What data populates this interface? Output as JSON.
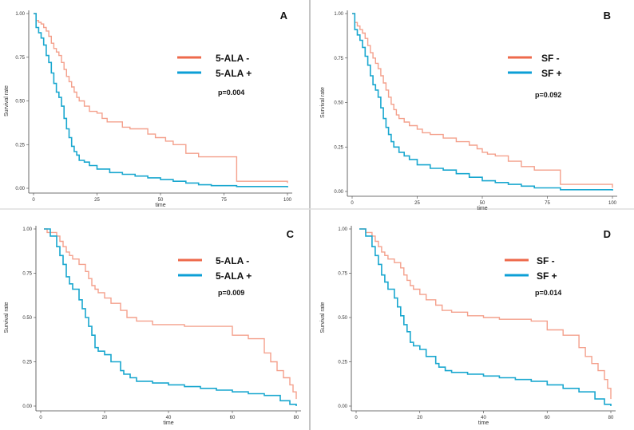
{
  "colors": {
    "negative": "#f4a08c",
    "positive": "#19a7cf",
    "negative_legend": "#ee6a4b",
    "positive_legend": "#0c9fd6",
    "axis": "#444444",
    "divider": "#8a8a8a"
  },
  "chart_data": [
    {
      "type": "line",
      "step": true,
      "panel": "A",
      "title": "",
      "xlabel": "time",
      "ylabel": "Survival rate",
      "xlim": [
        0,
        100
      ],
      "ylim": [
        0,
        1
      ],
      "xticks": [
        "0",
        "25",
        "50",
        "75",
        "100"
      ],
      "yticks": [
        "0.00",
        "0.25",
        "0.50",
        "0.75",
        "1.00"
      ],
      "xtick_values": [
        0,
        25,
        50,
        75,
        100
      ],
      "ytick_values": [
        0,
        0.25,
        0.5,
        0.75,
        1
      ],
      "legend": [
        "5-ALA -",
        "5-ALA +"
      ],
      "annotation": "p=0.004",
      "grid": false,
      "series": [
        {
          "name": "5-ALA -",
          "x": [
            0,
            1,
            2,
            3,
            4,
            5,
            6,
            7,
            8,
            9,
            10,
            11,
            12,
            13,
            14,
            15,
            16,
            17,
            18,
            20,
            22,
            25,
            27,
            29,
            35,
            38,
            45,
            48,
            52,
            55,
            60,
            65,
            80,
            100
          ],
          "values": [
            1.0,
            0.96,
            0.95,
            0.94,
            0.92,
            0.9,
            0.87,
            0.83,
            0.8,
            0.78,
            0.76,
            0.72,
            0.68,
            0.64,
            0.61,
            0.58,
            0.55,
            0.52,
            0.5,
            0.47,
            0.44,
            0.43,
            0.4,
            0.38,
            0.35,
            0.34,
            0.31,
            0.29,
            0.27,
            0.25,
            0.2,
            0.18,
            0.04,
            0.03
          ]
        },
        {
          "name": "5-ALA +",
          "x": [
            0,
            1,
            2,
            3,
            4,
            5,
            6,
            7,
            8,
            9,
            10,
            11,
            12,
            13,
            14,
            15,
            16,
            17,
            18,
            20,
            22,
            25,
            30,
            35,
            40,
            45,
            50,
            55,
            60,
            65,
            70,
            80,
            100
          ],
          "values": [
            1.0,
            0.92,
            0.89,
            0.86,
            0.82,
            0.76,
            0.72,
            0.66,
            0.6,
            0.55,
            0.52,
            0.47,
            0.4,
            0.34,
            0.29,
            0.24,
            0.21,
            0.19,
            0.16,
            0.15,
            0.13,
            0.11,
            0.09,
            0.08,
            0.07,
            0.06,
            0.05,
            0.04,
            0.03,
            0.02,
            0.015,
            0.01,
            0.005
          ]
        }
      ]
    },
    {
      "type": "line",
      "step": true,
      "panel": "B",
      "title": "",
      "xlabel": "time",
      "ylabel": "Survival rate",
      "xlim": [
        0,
        100
      ],
      "ylim": [
        0,
        1
      ],
      "xticks": [
        "0",
        "25",
        "50",
        "75",
        "100"
      ],
      "yticks": [
        "0.00",
        "0.25",
        "0.50",
        "0.75",
        "1.00"
      ],
      "xtick_values": [
        0,
        25,
        50,
        75,
        100
      ],
      "ytick_values": [
        0,
        0.25,
        0.5,
        0.75,
        1
      ],
      "legend": [
        "SF -",
        "SF +"
      ],
      "annotation": "p=0.092",
      "grid": false,
      "series": [
        {
          "name": "SF -",
          "x": [
            0,
            1,
            2,
            3,
            4,
            5,
            6,
            7,
            8,
            9,
            10,
            11,
            12,
            13,
            14,
            15,
            16,
            17,
            18,
            20,
            22,
            25,
            27,
            30,
            35,
            40,
            45,
            48,
            50,
            52,
            55,
            60,
            65,
            70,
            80,
            100
          ],
          "values": [
            1.0,
            0.95,
            0.93,
            0.91,
            0.89,
            0.86,
            0.82,
            0.78,
            0.75,
            0.72,
            0.69,
            0.65,
            0.61,
            0.57,
            0.53,
            0.49,
            0.46,
            0.43,
            0.41,
            0.39,
            0.37,
            0.35,
            0.33,
            0.32,
            0.3,
            0.28,
            0.26,
            0.24,
            0.22,
            0.21,
            0.2,
            0.17,
            0.14,
            0.12,
            0.04,
            0.02
          ]
        },
        {
          "name": "SF +",
          "x": [
            0,
            1,
            2,
            3,
            4,
            5,
            6,
            7,
            8,
            9,
            10,
            11,
            12,
            13,
            14,
            15,
            16,
            18,
            20,
            22,
            25,
            30,
            35,
            40,
            45,
            50,
            55,
            60,
            65,
            70,
            80,
            100
          ],
          "values": [
            1.0,
            0.91,
            0.88,
            0.85,
            0.81,
            0.76,
            0.71,
            0.65,
            0.6,
            0.57,
            0.53,
            0.47,
            0.41,
            0.36,
            0.32,
            0.28,
            0.25,
            0.22,
            0.2,
            0.18,
            0.15,
            0.13,
            0.12,
            0.1,
            0.08,
            0.06,
            0.05,
            0.04,
            0.03,
            0.02,
            0.01,
            0.005
          ]
        }
      ]
    },
    {
      "type": "line",
      "step": true,
      "panel": "C",
      "title": "",
      "xlabel": "time",
      "ylabel": "Survival rate",
      "xlim": [
        0,
        80
      ],
      "ylim": [
        0,
        1
      ],
      "xticks": [
        "0",
        "20",
        "40",
        "60",
        "80"
      ],
      "yticks": [
        "0.00",
        "0.25",
        "0.50",
        "0.75",
        "1.00"
      ],
      "xtick_values": [
        0,
        20,
        40,
        60,
        80
      ],
      "ytick_values": [
        0,
        0.25,
        0.5,
        0.75,
        1
      ],
      "legend": [
        "5-ALA -",
        "5-ALA +"
      ],
      "annotation": "p=0.009",
      "grid": false,
      "series": [
        {
          "name": "5-ALA -",
          "x": [
            1,
            2,
            5,
            6,
            7,
            8,
            9,
            10,
            12,
            14,
            15,
            16,
            17,
            18,
            20,
            22,
            25,
            27,
            30,
            35,
            40,
            45,
            50,
            55,
            60,
            65,
            70,
            72,
            74,
            76,
            78,
            79,
            80
          ],
          "values": [
            1.0,
            0.98,
            0.96,
            0.93,
            0.9,
            0.87,
            0.85,
            0.83,
            0.8,
            0.76,
            0.72,
            0.68,
            0.66,
            0.64,
            0.61,
            0.58,
            0.54,
            0.5,
            0.48,
            0.46,
            0.46,
            0.45,
            0.45,
            0.45,
            0.4,
            0.38,
            0.3,
            0.25,
            0.2,
            0.16,
            0.12,
            0.08,
            0.04
          ]
        },
        {
          "name": "5-ALA +",
          "x": [
            1,
            3,
            5,
            6,
            7,
            8,
            9,
            10,
            12,
            13,
            14,
            15,
            16,
            17,
            18,
            20,
            22,
            25,
            26,
            28,
            30,
            35,
            40,
            45,
            50,
            55,
            60,
            65,
            70,
            75,
            78,
            80
          ],
          "values": [
            1.0,
            0.96,
            0.9,
            0.85,
            0.8,
            0.73,
            0.69,
            0.66,
            0.6,
            0.55,
            0.5,
            0.45,
            0.4,
            0.33,
            0.31,
            0.29,
            0.25,
            0.2,
            0.18,
            0.16,
            0.14,
            0.13,
            0.12,
            0.11,
            0.1,
            0.09,
            0.08,
            0.07,
            0.06,
            0.03,
            0.01,
            0.0
          ]
        }
      ]
    },
    {
      "type": "line",
      "step": true,
      "panel": "D",
      "title": "",
      "xlabel": "time",
      "ylabel": "Survival rate",
      "xlim": [
        0,
        80
      ],
      "ylim": [
        0,
        1
      ],
      "xticks": [
        "0",
        "20",
        "40",
        "60",
        "80"
      ],
      "yticks": [
        "0.00",
        "0.25",
        "0.50",
        "0.75",
        "1.00"
      ],
      "xtick_values": [
        0,
        20,
        40,
        60,
        80
      ],
      "ytick_values": [
        0,
        0.25,
        0.5,
        0.75,
        1
      ],
      "legend": [
        "SF -",
        "SF +"
      ],
      "annotation": "p=0.014",
      "grid": false,
      "series": [
        {
          "name": "SF -",
          "x": [
            1,
            3,
            5,
            6,
            7,
            8,
            9,
            10,
            12,
            14,
            15,
            16,
            17,
            18,
            20,
            22,
            25,
            27,
            30,
            35,
            40,
            45,
            50,
            55,
            60,
            65,
            70,
            72,
            74,
            76,
            78,
            79,
            80
          ],
          "values": [
            1.0,
            0.98,
            0.96,
            0.93,
            0.9,
            0.87,
            0.85,
            0.83,
            0.81,
            0.78,
            0.74,
            0.71,
            0.68,
            0.66,
            0.63,
            0.6,
            0.57,
            0.54,
            0.53,
            0.51,
            0.5,
            0.49,
            0.49,
            0.48,
            0.43,
            0.4,
            0.33,
            0.28,
            0.24,
            0.2,
            0.15,
            0.1,
            0.04
          ]
        },
        {
          "name": "SF +",
          "x": [
            1,
            3,
            5,
            6,
            7,
            8,
            9,
            10,
            12,
            13,
            14,
            15,
            16,
            17,
            18,
            20,
            22,
            25,
            26,
            28,
            30,
            35,
            40,
            45,
            50,
            55,
            60,
            65,
            70,
            75,
            78,
            80
          ],
          "values": [
            1.0,
            0.96,
            0.9,
            0.85,
            0.8,
            0.74,
            0.7,
            0.66,
            0.61,
            0.56,
            0.51,
            0.46,
            0.42,
            0.36,
            0.34,
            0.32,
            0.28,
            0.24,
            0.22,
            0.2,
            0.19,
            0.18,
            0.17,
            0.16,
            0.15,
            0.14,
            0.12,
            0.1,
            0.08,
            0.04,
            0.01,
            0.0
          ]
        }
      ]
    }
  ]
}
